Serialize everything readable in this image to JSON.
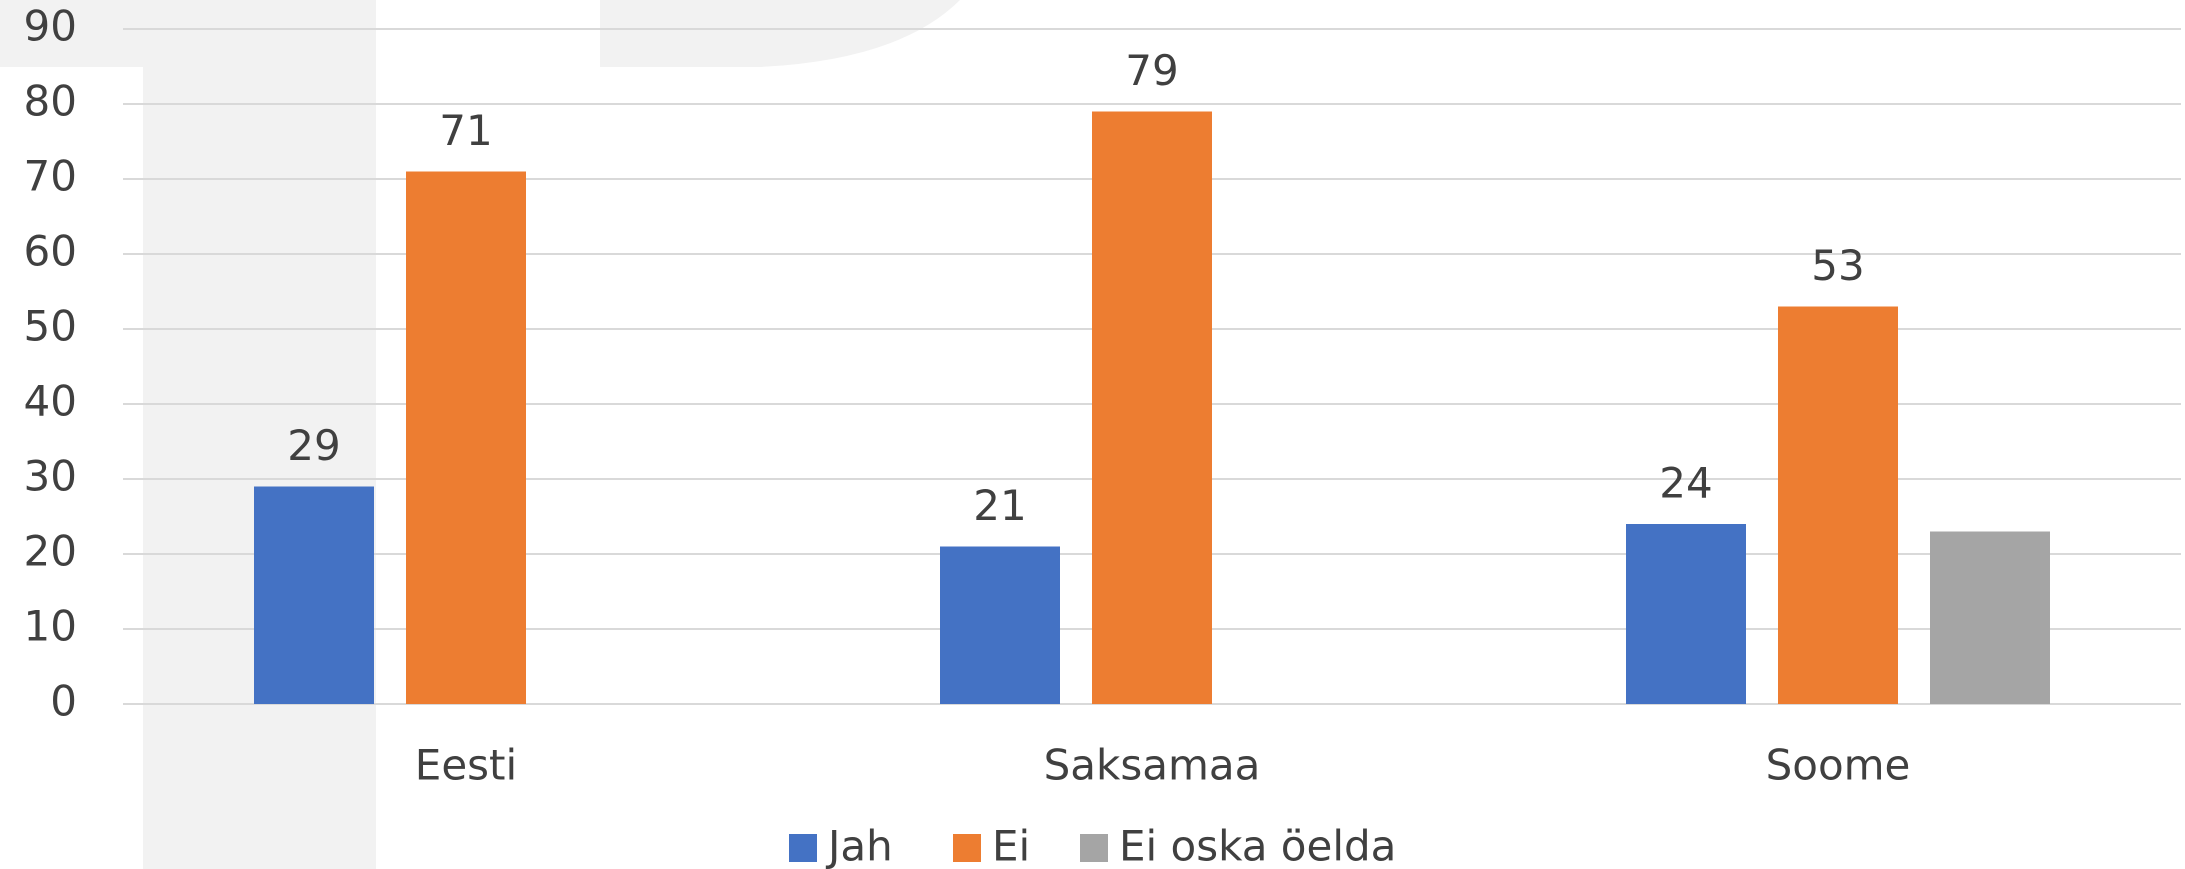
{
  "chart_data": {
    "type": "bar",
    "categories": [
      "Eesti",
      "Saksamaa",
      "Soome"
    ],
    "series": [
      {
        "name": "Jah",
        "color": "#4472c4",
        "values": [
          29,
          21,
          24
        ],
        "data_labels": true
      },
      {
        "name": "Ei",
        "color": "#ed7d31",
        "values": [
          71,
          79,
          53
        ],
        "data_labels": true
      },
      {
        "name": "Ei oska öelda",
        "color": "#a5a5a5",
        "values": [
          null,
          null,
          23
        ],
        "data_labels": false
      }
    ],
    "ylim": [
      0,
      90
    ],
    "yticks": [
      0,
      10,
      20,
      30,
      40,
      50,
      60,
      70,
      80,
      90
    ],
    "grid": true,
    "legend": "bottom"
  }
}
